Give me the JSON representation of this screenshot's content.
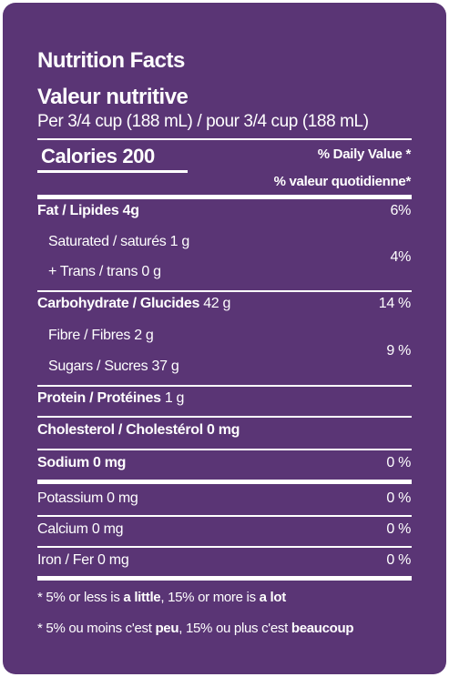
{
  "label": {
    "title_en": "Nutrition Facts",
    "title_fr": "Valeur nutritive",
    "serving": "Per 3/4 cup (188 mL) / pour 3/4 cup (188 mL)",
    "calories": "Calories 200",
    "dv_en": "% Daily Value *",
    "dv_fr": "% valeur quotidienne*",
    "fat": {
      "name": "Fat / Lipides",
      "amount": " 4g",
      "dv": "6%"
    },
    "saturated": {
      "name": "Saturated / saturés 1 g"
    },
    "trans": {
      "name": "+ Trans / trans 0 g"
    },
    "sat_trans_dv": "4%",
    "carb": {
      "name": "Carbohydrate / Glucides",
      "amount": " 42 g",
      "dv": "14 %"
    },
    "fibre": {
      "name": "Fibre / Fibres 2 g"
    },
    "sugars": {
      "name": "Sugars / Sucres 37 g"
    },
    "fibre_sugars_dv": "9 %",
    "protein": {
      "name": "Protein / Protéines",
      "amount": " 1 g"
    },
    "cholesterol": {
      "name": "Cholesterol / Cholestérol 0 mg"
    },
    "sodium": {
      "name": "Sodium 0 mg",
      "dv": "0 %"
    },
    "potassium": {
      "name": "Potassium 0 mg",
      "dv": "0 %"
    },
    "calcium": {
      "name": "Calcium 0 mg",
      "dv": "0 %"
    },
    "iron": {
      "name": "Iron / Fer 0 mg",
      "dv": "0 %"
    },
    "foot_en": {
      "a": "* 5% or less is ",
      "b": "a little",
      "c": ", 15% or more is ",
      "d": "a lot"
    },
    "foot_fr": {
      "a": "* 5% ou moins c'est ",
      "b": "peu",
      "c": ", 15% ou plus c'est ",
      "d": "beaucoup"
    }
  },
  "colors": {
    "background": "#5a3575",
    "text": "#ffffff"
  }
}
